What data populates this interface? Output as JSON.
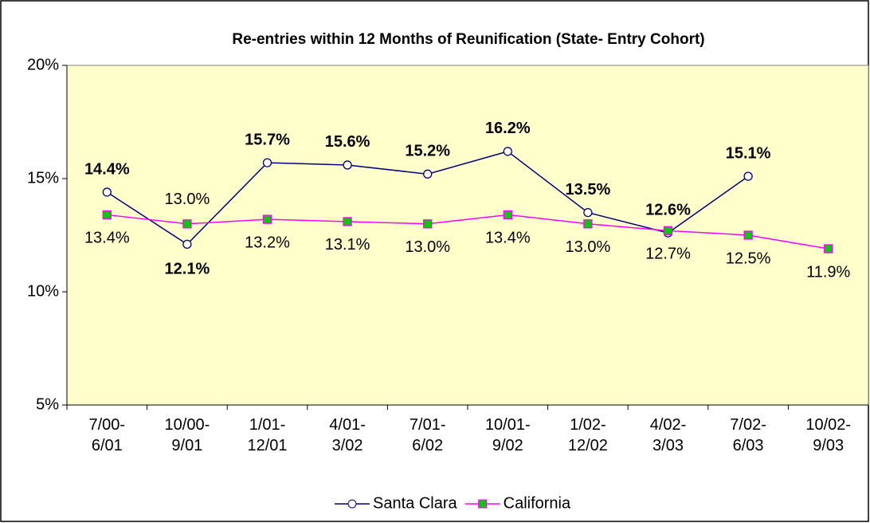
{
  "chart_data": {
    "type": "line",
    "title": "Re-entries within 12 Months of Reunification (State- Entry Cohort)",
    "categories": [
      "7/00-\n6/01",
      "10/00-\n9/01",
      "1/01-\n12/01",
      "4/01-\n3/02",
      "7/01-\n6/02",
      "10/01-\n9/02",
      "1/02-\n12/02",
      "4/02-\n3/03",
      "7/02-\n6/03",
      "10/02-\n9/03"
    ],
    "series": [
      {
        "name": "Santa Clara",
        "color": "#000080",
        "marker_fill": "#ffffff",
        "values": [
          14.4,
          12.1,
          15.7,
          15.6,
          15.2,
          16.2,
          13.5,
          12.6,
          15.1,
          null
        ],
        "value_labels": [
          "14.4%",
          "12.1%",
          "15.7%",
          "15.6%",
          "15.2%",
          "16.2%",
          "13.5%",
          "12.6%",
          "15.1%",
          null
        ]
      },
      {
        "name": "California",
        "color": "#ff00ff",
        "marker_fill": "#00cc00",
        "values": [
          13.4,
          13.0,
          13.2,
          13.1,
          13.0,
          13.4,
          13.0,
          12.7,
          12.5,
          11.9
        ],
        "value_labels": [
          "13.4%",
          "13.0%",
          "13.2%",
          "13.1%",
          "13.0%",
          "13.4%",
          "13.0%",
          "12.7%",
          "12.5%",
          "11.9%"
        ]
      }
    ],
    "ylim": [
      5,
      20
    ],
    "yticks": [
      {
        "value": 5,
        "label": "5%"
      },
      {
        "value": 10,
        "label": "10%"
      },
      {
        "value": 15,
        "label": "15%"
      },
      {
        "value": 20,
        "label": "20%"
      }
    ],
    "grid": false,
    "legend": "bottom",
    "plot_background": "#ffffcc"
  }
}
